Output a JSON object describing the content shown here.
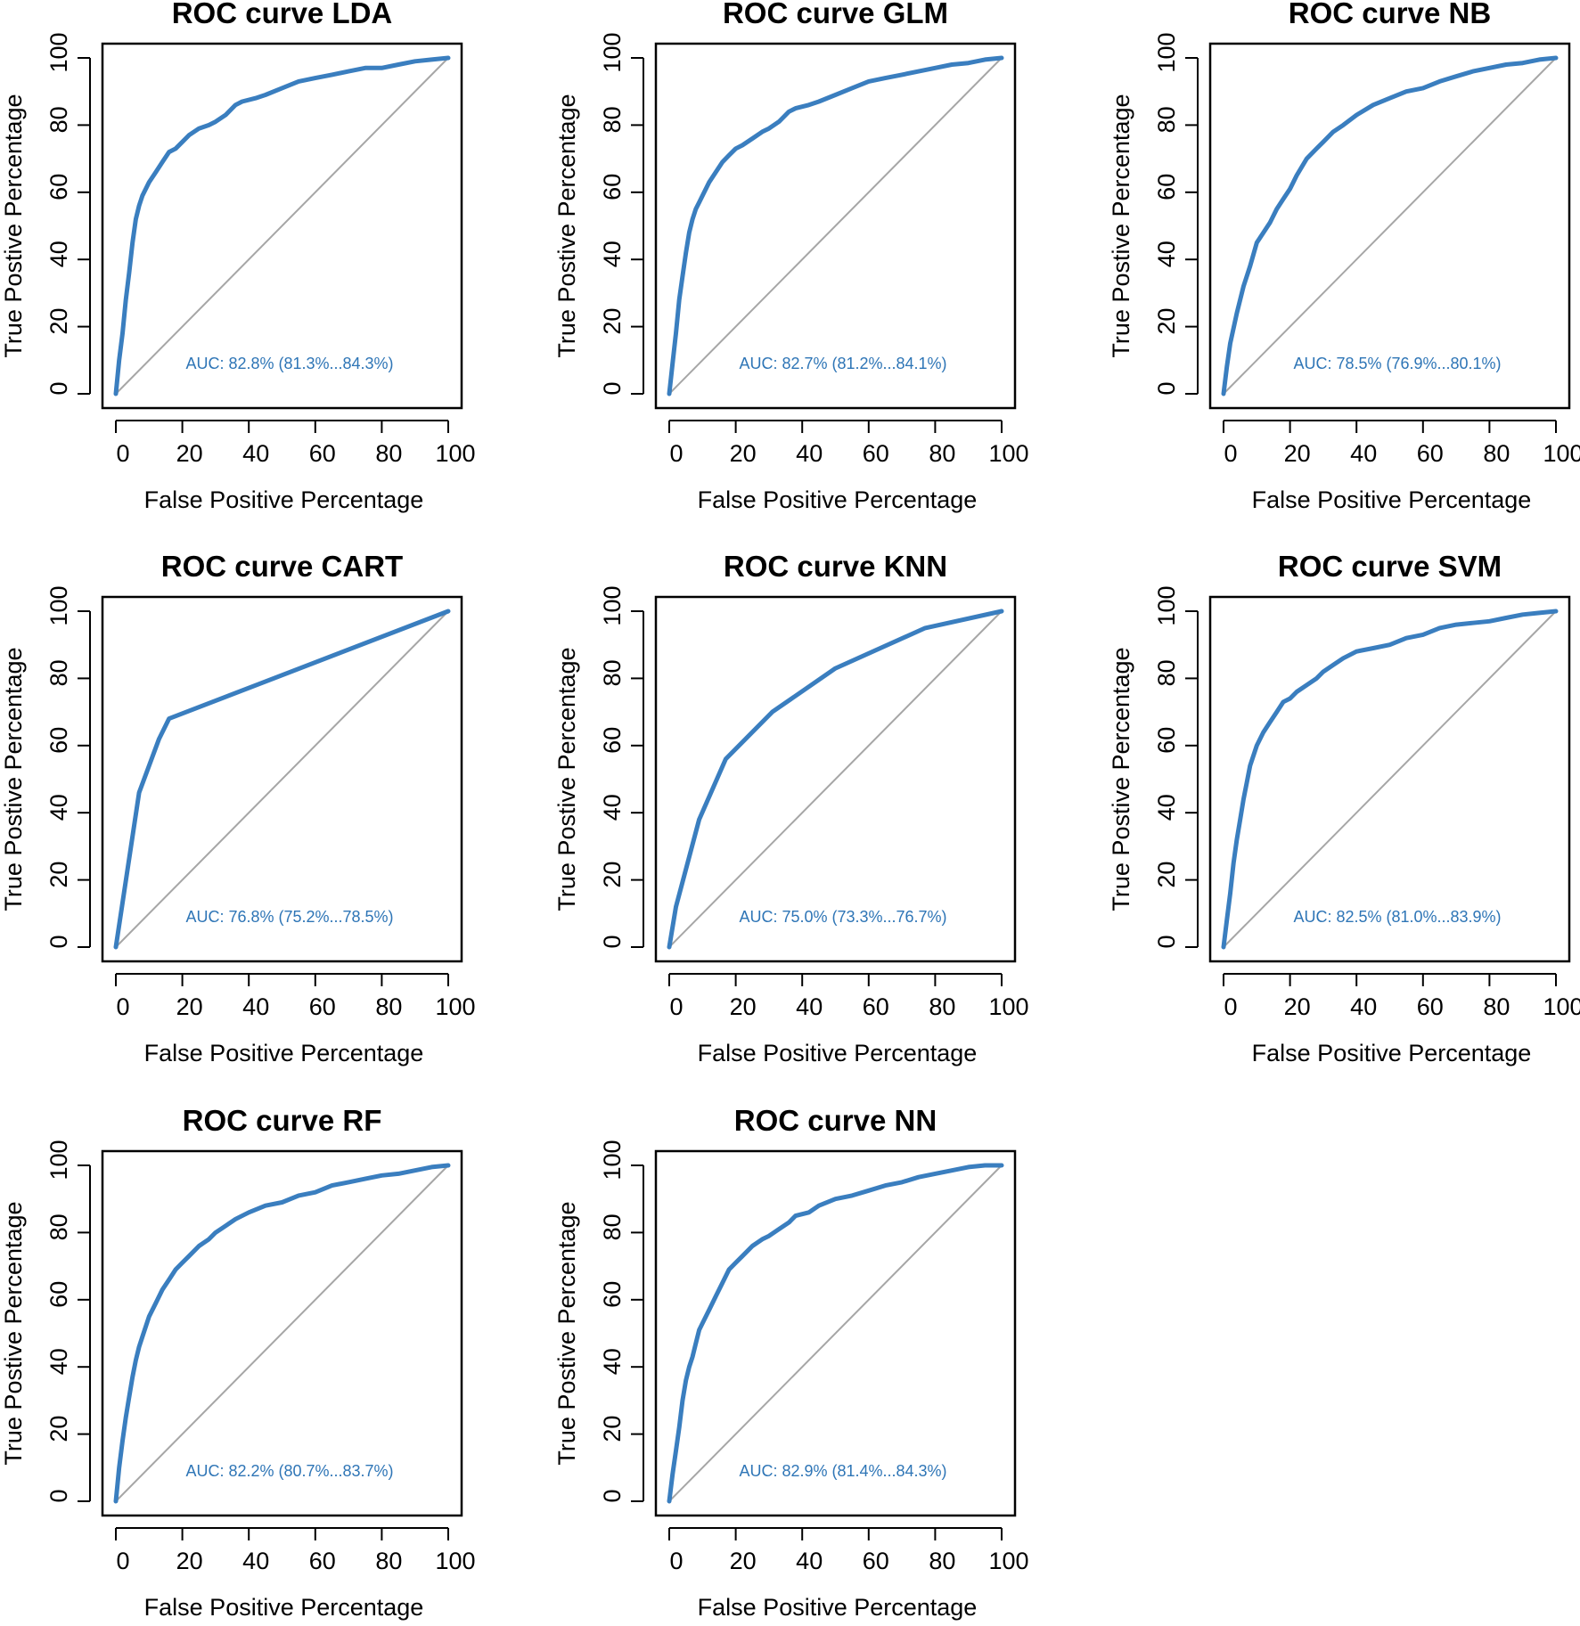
{
  "figure": {
    "accent_color": "#3a7ebf",
    "auc_text_color": "#2e75b6",
    "diagonal_color": "#a6a6a6"
  },
  "chart_data": [
    {
      "type": "line",
      "title": "ROC curve LDA",
      "xlabel": "False Positive Percentage",
      "ylabel": "True Postive Percentage",
      "xlim": [
        0,
        100
      ],
      "ylim": [
        0,
        100
      ],
      "xticks": [
        "0",
        "20",
        "40",
        "60",
        "80",
        "100"
      ],
      "yticks": [
        "0",
        "20",
        "40",
        "60",
        "80",
        "100"
      ],
      "auc_label": "AUC: 82.8% (81.3%...84.3%)",
      "series": [
        {
          "name": "ROC",
          "x": [
            0,
            1,
            2,
            3,
            4,
            5,
            6,
            7,
            8,
            10,
            12,
            14,
            16,
            18,
            20,
            22,
            25,
            28,
            30,
            33,
            36,
            38,
            42,
            45,
            50,
            55,
            60,
            65,
            70,
            75,
            80,
            85,
            90,
            95,
            100
          ],
          "y": [
            0,
            10,
            18,
            28,
            36,
            45,
            52,
            56,
            59,
            63,
            66,
            69,
            72,
            73,
            75,
            77,
            79,
            80,
            81,
            83,
            86,
            87,
            88,
            89,
            91,
            93,
            94,
            95,
            96,
            97,
            97,
            98,
            99,
            99.5,
            100
          ]
        }
      ]
    },
    {
      "type": "line",
      "title": "ROC curve GLM",
      "xlabel": "False Positive Percentage",
      "ylabel": "True Postive Percentage",
      "xlim": [
        0,
        100
      ],
      "ylim": [
        0,
        100
      ],
      "xticks": [
        "0",
        "20",
        "40",
        "60",
        "80",
        "100"
      ],
      "yticks": [
        "0",
        "20",
        "40",
        "60",
        "80",
        "100"
      ],
      "auc_label": "AUC: 82.7% (81.2%...84.1%)",
      "series": [
        {
          "name": "ROC",
          "x": [
            0,
            1,
            2,
            3,
            4,
            5,
            6,
            7,
            8,
            9,
            10,
            12,
            14,
            16,
            18,
            20,
            22,
            25,
            28,
            30,
            33,
            36,
            38,
            42,
            45,
            50,
            55,
            60,
            65,
            70,
            75,
            80,
            85,
            90,
            95,
            100
          ],
          "y": [
            0,
            9,
            18,
            28,
            35,
            42,
            48,
            52,
            55,
            57,
            59,
            63,
            66,
            69,
            71,
            73,
            74,
            76,
            78,
            79,
            81,
            84,
            85,
            86,
            87,
            89,
            91,
            93,
            94,
            95,
            96,
            97,
            98,
            98.5,
            99.5,
            100
          ]
        }
      ]
    },
    {
      "type": "line",
      "title": "ROC curve NB",
      "xlabel": "False Positive Percentage",
      "ylabel": "True Postive Percentage",
      "xlim": [
        0,
        100
      ],
      "ylim": [
        0,
        100
      ],
      "xticks": [
        "0",
        "20",
        "40",
        "60",
        "80",
        "100"
      ],
      "yticks": [
        "0",
        "20",
        "40",
        "60",
        "80",
        "100"
      ],
      "auc_label": "AUC: 78.5% (76.9%...80.1%)",
      "series": [
        {
          "name": "ROC",
          "x": [
            0,
            1,
            2,
            4,
            6,
            8,
            10,
            12,
            14,
            16,
            18,
            20,
            22,
            25,
            28,
            30,
            33,
            36,
            40,
            45,
            50,
            55,
            60,
            65,
            70,
            75,
            80,
            85,
            90,
            95,
            100
          ],
          "y": [
            0,
            8,
            15,
            24,
            32,
            38,
            45,
            48,
            51,
            55,
            58,
            61,
            65,
            70,
            73,
            75,
            78,
            80,
            83,
            86,
            88,
            90,
            91,
            93,
            94.5,
            96,
            97,
            98,
            98.5,
            99.5,
            100
          ]
        }
      ]
    },
    {
      "type": "line",
      "title": "ROC curve CART",
      "xlabel": "False Positive Percentage",
      "ylabel": "True Postive Percentage",
      "xlim": [
        0,
        100
      ],
      "ylim": [
        0,
        100
      ],
      "xticks": [
        "0",
        "20",
        "40",
        "60",
        "80",
        "100"
      ],
      "yticks": [
        "0",
        "20",
        "40",
        "60",
        "80",
        "100"
      ],
      "auc_label": "AUC: 76.8% (75.2%...78.5%)",
      "series": [
        {
          "name": "ROC",
          "x": [
            0,
            7,
            13,
            16,
            100
          ],
          "y": [
            0,
            46,
            62,
            68,
            100
          ]
        }
      ]
    },
    {
      "type": "line",
      "title": "ROC curve KNN",
      "xlabel": "False Positive Percentage",
      "ylabel": "True Postive Percentage",
      "xlim": [
        0,
        100
      ],
      "ylim": [
        0,
        100
      ],
      "xticks": [
        "0",
        "20",
        "40",
        "60",
        "80",
        "100"
      ],
      "yticks": [
        "0",
        "20",
        "40",
        "60",
        "80",
        "100"
      ],
      "auc_label": "AUC: 75.0% (73.3%...76.7%)",
      "series": [
        {
          "name": "ROC",
          "x": [
            0,
            2,
            9,
            17,
            31,
            50,
            77,
            100
          ],
          "y": [
            0,
            12,
            38,
            56,
            70,
            83,
            95,
            100
          ]
        }
      ]
    },
    {
      "type": "line",
      "title": "ROC curve SVM",
      "xlabel": "False Positive Percentage",
      "ylabel": "True Postive Percentage",
      "xlim": [
        0,
        100
      ],
      "ylim": [
        0,
        100
      ],
      "xticks": [
        "0",
        "20",
        "40",
        "60",
        "80",
        "100"
      ],
      "yticks": [
        "0",
        "20",
        "40",
        "60",
        "80",
        "100"
      ],
      "auc_label": "AUC: 82.5% (81.0%...83.9%)",
      "series": [
        {
          "name": "ROC",
          "x": [
            0,
            1,
            2,
            3,
            4,
            5,
            6,
            7,
            8,
            10,
            12,
            14,
            16,
            18,
            20,
            22,
            25,
            28,
            30,
            33,
            36,
            40,
            45,
            50,
            55,
            60,
            65,
            70,
            75,
            80,
            85,
            90,
            95,
            100
          ],
          "y": [
            0,
            8,
            16,
            25,
            32,
            38,
            44,
            49,
            54,
            60,
            64,
            67,
            70,
            73,
            74,
            76,
            78,
            80,
            82,
            84,
            86,
            88,
            89,
            90,
            92,
            93,
            95,
            96,
            96.5,
            97,
            98,
            99,
            99.5,
            100
          ]
        }
      ]
    },
    {
      "type": "line",
      "title": "ROC curve RF",
      "xlabel": "False Positive Percentage",
      "ylabel": "True Postive Percentage",
      "xlim": [
        0,
        100
      ],
      "ylim": [
        0,
        100
      ],
      "xticks": [
        "0",
        "20",
        "40",
        "60",
        "80",
        "100"
      ],
      "yticks": [
        "0",
        "20",
        "40",
        "60",
        "80",
        "100"
      ],
      "auc_label": "AUC: 82.2% (80.7%...83.7%)",
      "series": [
        {
          "name": "ROC",
          "x": [
            0,
            1,
            2,
            3,
            4,
            5,
            6,
            7,
            8,
            10,
            12,
            14,
            16,
            18,
            20,
            22,
            25,
            28,
            30,
            33,
            36,
            40,
            45,
            50,
            55,
            60,
            65,
            70,
            75,
            80,
            85,
            90,
            95,
            100
          ],
          "y": [
            0,
            10,
            18,
            25,
            31,
            37,
            42,
            46,
            49,
            55,
            59,
            63,
            66,
            69,
            71,
            73,
            76,
            78,
            80,
            82,
            84,
            86,
            88,
            89,
            91,
            92,
            94,
            95,
            96,
            97,
            97.5,
            98.5,
            99.5,
            100
          ]
        }
      ]
    },
    {
      "type": "line",
      "title": "ROC curve NN",
      "xlabel": "False Positive Percentage",
      "ylabel": "True Postive Percentage",
      "xlim": [
        0,
        100
      ],
      "ylim": [
        0,
        100
      ],
      "xticks": [
        "0",
        "20",
        "40",
        "60",
        "80",
        "100"
      ],
      "yticks": [
        "0",
        "20",
        "40",
        "60",
        "80",
        "100"
      ],
      "auc_label": "AUC: 82.9% (81.4%...84.3%)",
      "series": [
        {
          "name": "ROC",
          "x": [
            0,
            1,
            2,
            3,
            4,
            5,
            6,
            7,
            8,
            9,
            10,
            12,
            14,
            16,
            18,
            20,
            22,
            25,
            28,
            30,
            33,
            36,
            38,
            42,
            45,
            50,
            55,
            60,
            65,
            70,
            75,
            80,
            85,
            90,
            95,
            100
          ],
          "y": [
            0,
            8,
            15,
            22,
            30,
            36,
            40,
            43,
            47,
            51,
            53,
            57,
            61,
            65,
            69,
            71,
            73,
            76,
            78,
            79,
            81,
            83,
            85,
            86,
            88,
            90,
            91,
            92.5,
            94,
            95,
            96.5,
            97.5,
            98.5,
            99.5,
            100,
            100
          ]
        }
      ]
    }
  ]
}
